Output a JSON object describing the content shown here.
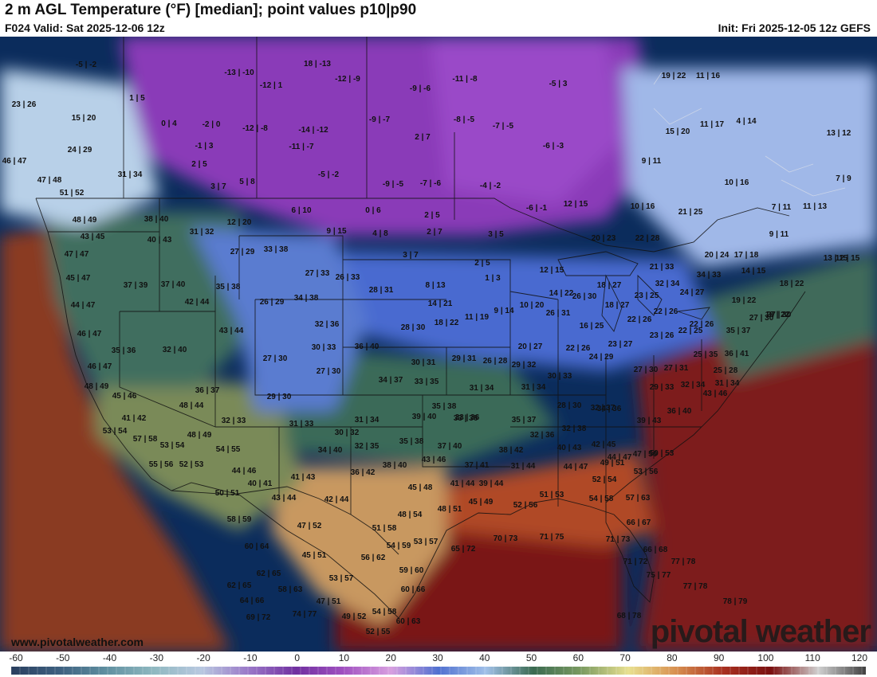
{
  "header": {
    "title": "2 m AGL Temperature (°F) [median]; point values p10|p90",
    "valid": "F024 Valid: Sat 2025-12-06 12z",
    "init": "Init: Fri 2025-12-05 12z GEFS"
  },
  "credit": {
    "url": "www.pivotalweather.com",
    "logo": "pivotal weather"
  },
  "colorbar": {
    "ticks": [
      "-60",
      "-50",
      "-40",
      "-30",
      "-20",
      "-10",
      "0",
      "10",
      "20",
      "30",
      "40",
      "50",
      "60",
      "70",
      "80",
      "90",
      "100",
      "110",
      "120"
    ],
    "stops": [
      "#2a3f5f",
      "#3d5f7f",
      "#5f8fa0",
      "#8fb8c0",
      "#b8c8e0",
      "#9a78c8",
      "#7030a0",
      "#a050c0",
      "#d8a0e0",
      "#5070d0",
      "#a0c0e8",
      "#3a6a50",
      "#7a9a60",
      "#e8e090",
      "#d89050",
      "#a83020",
      "#7a1010",
      "#d0d0d0",
      "#404040"
    ]
  },
  "map_layers": {
    "base_color": "#0b2c5c",
    "zones": [
      {
        "name": "gulf-of-mexico-warm",
        "color": "#7a1414"
      },
      {
        "name": "atlantic-warm",
        "color": "#7d1a1a"
      },
      {
        "name": "pacific-warm",
        "color": "#8a3a20"
      },
      {
        "name": "southeast-warm",
        "color": "#b04a28"
      },
      {
        "name": "texas-tan",
        "color": "#c89860"
      },
      {
        "name": "southwest-olive",
        "color": "#7a8a58"
      },
      {
        "name": "plains-green",
        "color": "#3a6a58"
      },
      {
        "name": "west-green",
        "color": "#3f6e5e"
      },
      {
        "name": "midwest-blue",
        "color": "#4a6ad0"
      },
      {
        "name": "rockies-blue",
        "color": "#5a7cd0"
      },
      {
        "name": "canada-purple",
        "color": "#8a3ab8"
      },
      {
        "name": "hudson-purple",
        "color": "#9a48c8"
      },
      {
        "name": "quebec-lightblue",
        "color": "#a0b8e8"
      },
      {
        "name": "bc-coast-lightblue",
        "color": "#b8d0e8"
      },
      {
        "name": "northeast-green",
        "color": "#3f6a5a"
      }
    ]
  },
  "point_values": [
    "-5|-2",
    "-13|-10",
    "18|-13",
    "-12|-9",
    "-11|-8",
    "-5|3",
    "19|22",
    "11|16",
    "23|26",
    "1|5",
    "-12|1",
    "-9|-6",
    "15|20",
    "0|4",
    "-2|0",
    "-12|-8",
    "-14|-12",
    "-9|-7",
    "-8|-5",
    "-7|-5",
    "15|20",
    "11|17",
    "4|14",
    "13|12",
    "24|29",
    "-1|3",
    "-11|-7",
    "2|7",
    "-6|-3",
    "9|11",
    "46|47",
    "2|5",
    "-5|-2",
    "47|48",
    "31|34",
    "3|7",
    "5|8",
    "-9|-5",
    "-7|-6",
    "-4|-2",
    "10|16",
    "7|9",
    "51|52",
    "6|10",
    "0|6",
    "2|5",
    "-6|-1",
    "12|15",
    "10|16",
    "21|25",
    "7|11",
    "11|13",
    "48|49",
    "38|40",
    "31|32",
    "12|20",
    "9|15",
    "4|8",
    "2|7",
    "3|5",
    "20|23",
    "22|28",
    "9|11",
    "43|45",
    "40|43",
    "27|29",
    "33|38",
    "3|7",
    "2|5",
    "12|15",
    "21|33",
    "20|24",
    "17|18",
    "13|15",
    "12|15",
    "47|47",
    "27|33",
    "26|33",
    "8|13",
    "1|3",
    "14|22",
    "26|30",
    "18|27",
    "32|34",
    "34|33",
    "14|15",
    "18|22",
    "45|47",
    "37|39",
    "37|40",
    "35|38",
    "26|29",
    "34|38",
    "28|31",
    "14|21",
    "11|19",
    "9|14",
    "10|20",
    "23|25",
    "24|27",
    "19|22",
    "44|47",
    "42|44",
    "43|44",
    "32|36",
    "28|30",
    "18|22",
    "26|31",
    "16|25",
    "18|27",
    "22|26",
    "22|26",
    "18|22",
    "22|26",
    "27|30",
    "27|30",
    "46|47",
    "35|36",
    "32|40",
    "30|33",
    "36|40",
    "20|27",
    "22|26",
    "23|27",
    "23|26",
    "22|25",
    "25|35",
    "35|37",
    "36|41",
    "46|47",
    "27|30",
    "27|30",
    "30|31",
    "29|31",
    "26|28",
    "29|32",
    "24|29",
    "27|30",
    "27|31",
    "25|28",
    "32|34",
    "31|34",
    "48|49",
    "45|46",
    "36|37",
    "34|37",
    "33|35",
    "31|34",
    "31|34",
    "30|33",
    "29|33",
    "43|46",
    "48|44",
    "29|30",
    "41|42",
    "32|33",
    "35|38",
    "39|40",
    "33|36",
    "35|37",
    "28|30",
    "34|36",
    "32|37",
    "36|40",
    "53|54",
    "48|49",
    "31|33",
    "31|34",
    "33|36",
    "32|36",
    "32|38",
    "39|43",
    "57|58",
    "53|54",
    "54|55",
    "30|32",
    "32|35",
    "35|38",
    "37|40",
    "38|42",
    "40|43",
    "42|45",
    "44|47",
    "47|50",
    "55|56",
    "52|53",
    "44|46",
    "34|40",
    "41|43",
    "36|42",
    "38|40",
    "43|46",
    "37|41",
    "31|44",
    "44|47",
    "49|51",
    "50|53",
    "53|56",
    "40|41",
    "45|48",
    "41|44",
    "39|44",
    "52|54",
    "50|51",
    "43|44",
    "42|44",
    "48|51",
    "45|49",
    "52|56",
    "51|53",
    "54|58",
    "57|63",
    "58|59",
    "47|52",
    "48|54",
    "51|58",
    "66|67",
    "60|64",
    "45|51",
    "56|62",
    "54|59",
    "53|57",
    "65|72",
    "70|73",
    "71|75",
    "71|73",
    "66|68",
    "62|65",
    "53|57",
    "59|60",
    "71|72",
    "77|78",
    "75|77",
    "62|65",
    "58|63",
    "60|66",
    "77|78",
    "64|66",
    "47|51",
    "54|58",
    "78|79",
    "69|72",
    "74|77",
    "49|52",
    "60|63",
    "68|78",
    "52|55"
  ]
}
